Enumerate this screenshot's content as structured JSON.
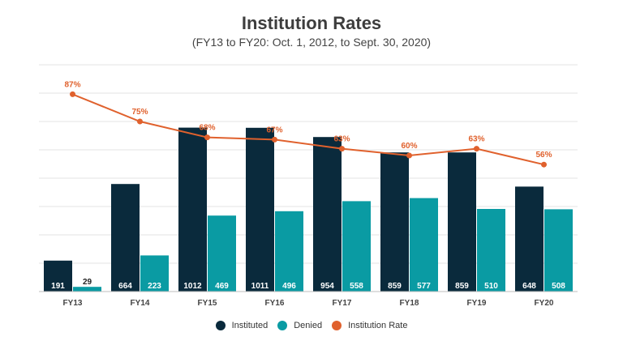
{
  "chart_data": {
    "type": "bar",
    "title": "Institution Rates",
    "subtitle": "(FY13 to FY20: Oct. 1, 2012, to Sept. 30, 2020)",
    "categories": [
      "FY13",
      "FY14",
      "FY15",
      "FY16",
      "FY17",
      "FY18",
      "FY19",
      "FY20"
    ],
    "series": [
      {
        "name": "Instituted",
        "type": "bar",
        "color": "#0a2a3c",
        "values": [
          191,
          664,
          1012,
          1011,
          954,
          859,
          859,
          648
        ]
      },
      {
        "name": "Denied",
        "type": "bar",
        "color": "#0a9ba3",
        "values": [
          29,
          223,
          469,
          496,
          558,
          577,
          510,
          508
        ]
      },
      {
        "name": "Institution Rate",
        "type": "line",
        "color": "#e0612d",
        "values": [
          87,
          75,
          68,
          67,
          63,
          60,
          63,
          56
        ],
        "labels": [
          "87%",
          "75%",
          "68%",
          "67%",
          "63%",
          "60%",
          "63%",
          "56%"
        ]
      }
    ],
    "ylim": [
      0,
      1400
    ],
    "y2lim": [
      0,
      100
    ],
    "grid": true,
    "legend_position": "bottom-center"
  }
}
